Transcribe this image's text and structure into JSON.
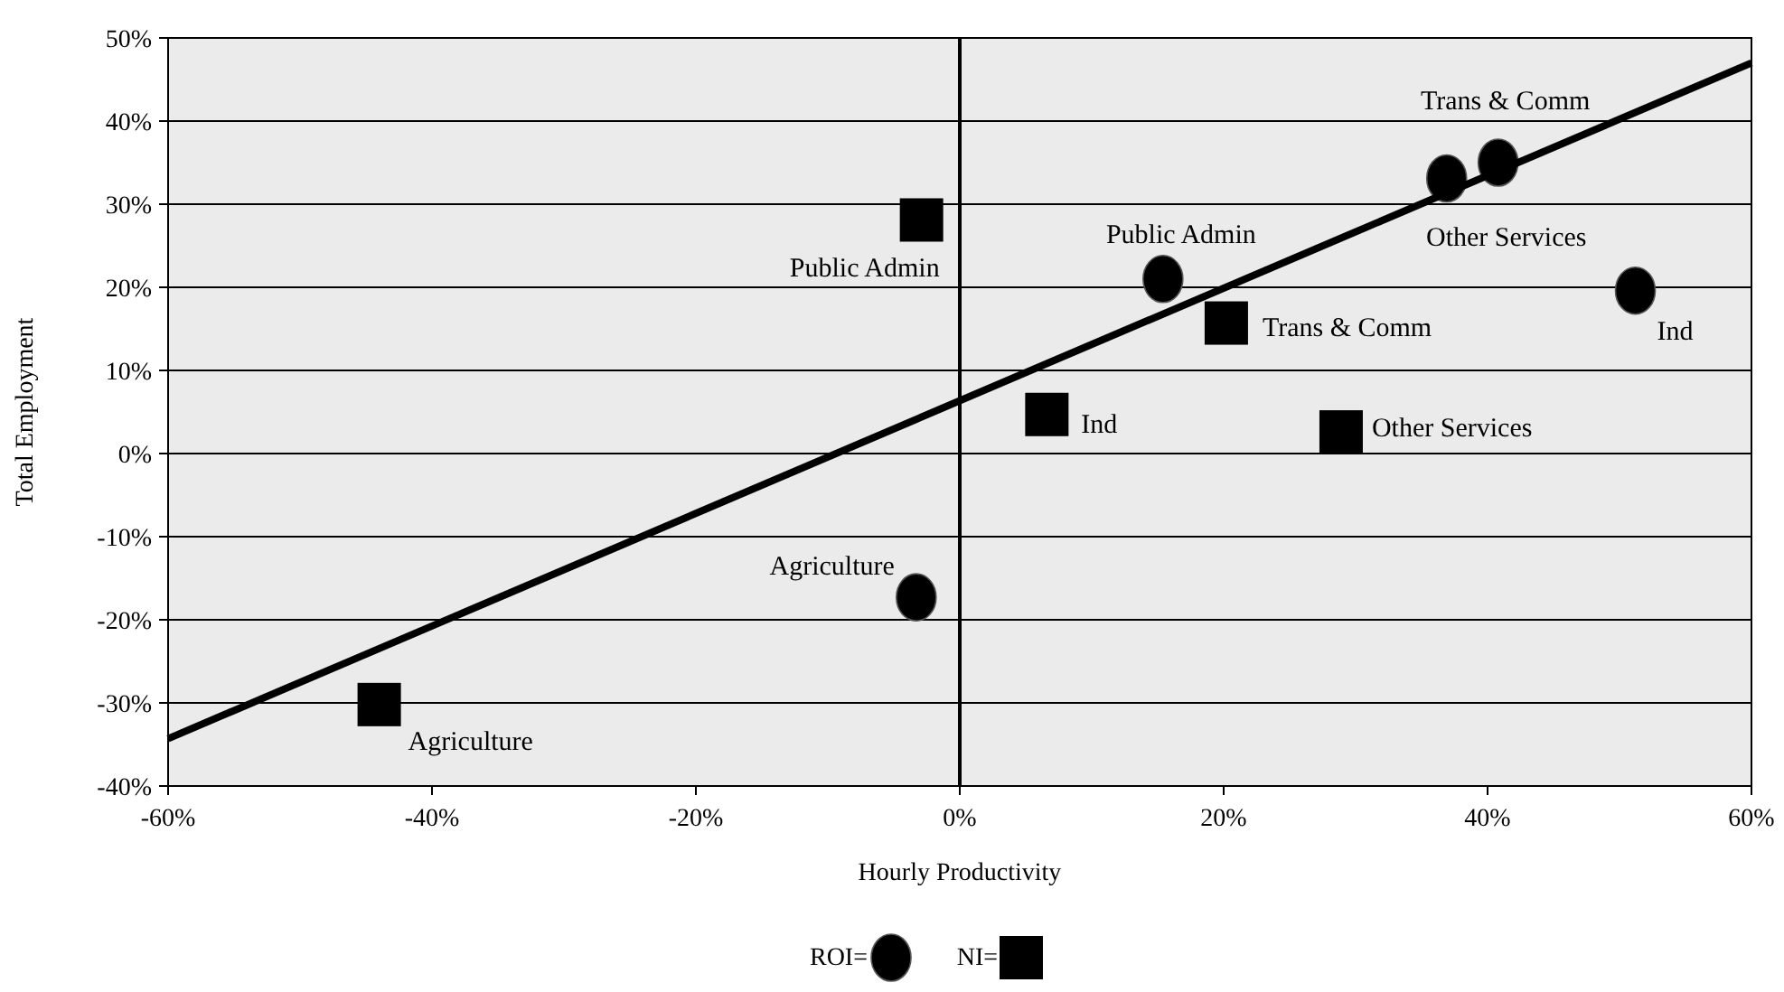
{
  "chart_data": {
    "type": "scatter",
    "xlabel": "Hourly Productivity",
    "ylabel": "Total Employment",
    "xlim": [
      -60,
      60
    ],
    "xticks": [
      {
        "value": -60,
        "label": "-60%"
      },
      {
        "value": -40,
        "label": "-40%"
      },
      {
        "value": -20,
        "label": "-20%"
      },
      {
        "value": 0,
        "label": "0%"
      },
      {
        "value": 20,
        "label": "20%"
      },
      {
        "value": 40,
        "label": "40%"
      },
      {
        "value": 60,
        "label": "60%"
      }
    ],
    "ylim": [
      -40,
      50
    ],
    "yticks": [
      {
        "value": -40,
        "label": "-40%"
      },
      {
        "value": -30,
        "label": "-30%"
      },
      {
        "value": -20,
        "label": "-20%"
      },
      {
        "value": -10,
        "label": "-10%"
      },
      {
        "value": 0,
        "label": "0%"
      },
      {
        "value": 10,
        "label": "10%"
      },
      {
        "value": 20,
        "label": "20%"
      },
      {
        "value": 30,
        "label": "30%"
      },
      {
        "value": 40,
        "label": "40%"
      },
      {
        "value": 50,
        "label": "50%"
      }
    ],
    "grid": "y",
    "legend": "bottom",
    "ref_lines": [
      {
        "axis": "x",
        "value": 0
      }
    ],
    "series": [
      {
        "name": "ROI=",
        "type": "scatter",
        "marker": "circle",
        "color": "#000000",
        "x": [
          40.8,
          36.9,
          15.4,
          51.2,
          -3.3
        ],
        "values": [
          35,
          33.1,
          21,
          19.6,
          -17.3
        ]
      },
      {
        "name": "NI=",
        "type": "scatter",
        "marker": "square",
        "color": "#000000",
        "x": [
          -2.9,
          20.2,
          6.6,
          28.9,
          -44
        ],
        "values": [
          28.1,
          15.7,
          4.7,
          2.6,
          -30.2
        ]
      },
      {
        "type": "line",
        "color": "#000000",
        "x": [
          -60,
          60
        ],
        "values": [
          -34.3,
          47
        ]
      }
    ],
    "annotations": [
      {
        "text": "Trans & Comm",
        "x": 40.8,
        "y": 35
      },
      {
        "text": "Other Services",
        "x": 36.9,
        "y": 33.1
      },
      {
        "text": "Public Admin",
        "x": 15.4,
        "y": 21
      },
      {
        "text": "Ind",
        "x": 51.2,
        "y": 19.6
      },
      {
        "text": "Agriculture",
        "x": -3.3,
        "y": -17.3
      },
      {
        "text": "Public Admin",
        "x": -2.9,
        "y": 28.1
      },
      {
        "text": "Trans & Comm",
        "x": 20.2,
        "y": 15.7
      },
      {
        "text": "Ind",
        "x": 6.6,
        "y": 4.7
      },
      {
        "text": "Other Services",
        "x": 28.9,
        "y": 2.6
      },
      {
        "text": "Agriculture",
        "x": -44,
        "y": -30.2
      }
    ]
  }
}
